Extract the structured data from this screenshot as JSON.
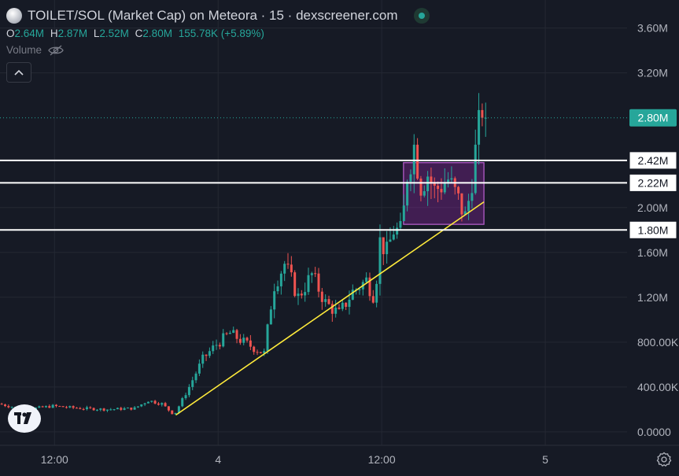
{
  "header": {
    "title": "TOILET/SOL (Market Cap) on Meteora · 15 · dexscreener.com",
    "ohlc": [
      {
        "key": "O",
        "value": "2.64M"
      },
      {
        "key": "H",
        "value": "2.87M"
      },
      {
        "key": "L",
        "value": "2.52M"
      },
      {
        "key": "C",
        "value": "2.80M"
      }
    ],
    "change": "155.78K (+5.89%)",
    "volume_label": "Volume"
  },
  "colors": {
    "background": "#161a25",
    "up": "#26a69a",
    "down": "#ef5350",
    "trendline": "#ffeb3b",
    "box": "#9c27b0",
    "level_line": "#ffffff"
  },
  "icons": [
    "coin-logo-icon",
    "status-dot-icon",
    "eye-off-icon",
    "chevron-up-icon",
    "tradingview-logo-icon",
    "gear-icon"
  ],
  "chart_data": {
    "type": "candlestick",
    "y_unit": "USD market cap",
    "y_ticks": [
      {
        "value": 0,
        "label": "0.0000"
      },
      {
        "value": 400000,
        "label": "400.00K"
      },
      {
        "value": 800000,
        "label": "800.00K"
      },
      {
        "value": 1200000,
        "label": "1.20M"
      },
      {
        "value": 1600000,
        "label": "1.60M"
      },
      {
        "value": 2000000,
        "label": "2.00M"
      },
      {
        "value": 3200000,
        "label": "3.20M"
      },
      {
        "value": 3600000,
        "label": "3.60M"
      }
    ],
    "ylim": [
      -120000,
      3850000
    ],
    "x_hours_range": [
      -16,
      30
    ],
    "x_ticks": [
      {
        "hours": -12,
        "label": "12:00"
      },
      {
        "hours": 0,
        "label": "4"
      },
      {
        "hours": 12,
        "label": "12:00"
      },
      {
        "hours": 24,
        "label": "5"
      }
    ],
    "current_price": {
      "value": 2800000,
      "label": "2.80M"
    },
    "horizontal_levels": [
      {
        "value": 2420000,
        "label": "2.42M"
      },
      {
        "value": 2220000,
        "label": "2.22M"
      },
      {
        "value": 1800000,
        "label": "1.80M"
      }
    ],
    "trendline": {
      "from": {
        "hours": -3.1,
        "value": 150000
      },
      "to": {
        "hours": 19.5,
        "value": 2050000
      }
    },
    "rectangle": {
      "from_hours": 13.6,
      "to_hours": 19.5,
      "top": 2400000,
      "bottom": 1850000
    },
    "anchor_points": [
      [
        -16,
        250000
      ],
      [
        -14,
        200000
      ],
      [
        -12,
        230000
      ],
      [
        -10,
        210000
      ],
      [
        -8,
        200000
      ],
      [
        -6,
        210000
      ],
      [
        -5,
        280000
      ],
      [
        -4,
        250000
      ],
      [
        -3.1,
        150000
      ],
      [
        -2,
        400000
      ],
      [
        -1,
        650000
      ],
      [
        0,
        780000
      ],
      [
        1,
        880000
      ],
      [
        2,
        800000
      ],
      [
        3.5,
        700000
      ],
      [
        4.2,
        1300000
      ],
      [
        5,
        1500000
      ],
      [
        6,
        1200000
      ],
      [
        7,
        1400000
      ],
      [
        8,
        1150000
      ],
      [
        9,
        1050000
      ],
      [
        10,
        1250000
      ],
      [
        11,
        1350000
      ],
      [
        11.6,
        1200000
      ],
      [
        12,
        1700000
      ],
      [
        12.5,
        1600000
      ],
      [
        13,
        1800000
      ],
      [
        13.6,
        1780000
      ],
      [
        14,
        2300000
      ],
      [
        14.5,
        2550000
      ],
      [
        15,
        2200000
      ],
      [
        15.5,
        2300000
      ],
      [
        16,
        2150000
      ],
      [
        17,
        2250000
      ],
      [
        17.8,
        2050000
      ],
      [
        18.3,
        1900000
      ],
      [
        18.8,
        2300000
      ],
      [
        19.2,
        2700000
      ],
      [
        19.5,
        2800000
      ]
    ]
  }
}
